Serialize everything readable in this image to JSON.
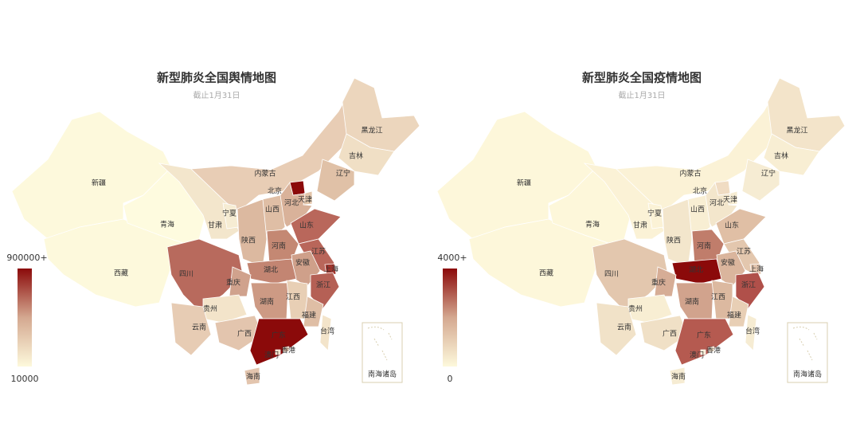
{
  "maps": [
    {
      "title": "新型肺炎全国舆情地图",
      "subtitle": "截止1月31日",
      "legend": {
        "max": "900000+",
        "min": "10000"
      },
      "inset_label": "南海诸岛",
      "regions": [
        {
          "name": "新疆",
          "color": "#fdf9dc"
        },
        {
          "name": "西藏",
          "color": "#fdf9dc"
        },
        {
          "name": "青海",
          "color": "#fefbdf"
        },
        {
          "name": "甘肃",
          "color": "#f3e6cc"
        },
        {
          "name": "内蒙古",
          "color": "#e8cdb5"
        },
        {
          "name": "黑龙江",
          "color": "#ecd6bd"
        },
        {
          "name": "吉林",
          "color": "#f0dfc5"
        },
        {
          "name": "辽宁",
          "color": "#e0c1a7"
        },
        {
          "name": "北京",
          "color": "#8b0a0a"
        },
        {
          "name": "天津",
          "color": "#e3c5aa"
        },
        {
          "name": "河北",
          "color": "#d9b29a"
        },
        {
          "name": "山西",
          "color": "#dfbea5"
        },
        {
          "name": "宁夏",
          "color": "#f6ecd3"
        },
        {
          "name": "陕西",
          "color": "#dcb9a0"
        },
        {
          "name": "山东",
          "color": "#b9675b"
        },
        {
          "name": "河南",
          "color": "#c48873"
        },
        {
          "name": "江苏",
          "color": "#b9665a"
        },
        {
          "name": "安徽",
          "color": "#cfa08a"
        },
        {
          "name": "上海",
          "color": "#a2352d"
        },
        {
          "name": "浙江",
          "color": "#b56055"
        },
        {
          "name": "湖北",
          "color": "#c38572"
        },
        {
          "name": "四川",
          "color": "#b86a5d"
        },
        {
          "name": "重庆",
          "color": "#d0a28d"
        },
        {
          "name": "湖南",
          "color": "#cd9a84"
        },
        {
          "name": "江西",
          "color": "#e8cfb5"
        },
        {
          "name": "福建",
          "color": "#dfbea5"
        },
        {
          "name": "贵州",
          "color": "#f3e4ca"
        },
        {
          "name": "云南",
          "color": "#e7ccb4"
        },
        {
          "name": "广西",
          "color": "#e3c5ae"
        },
        {
          "name": "广东",
          "color": "#8b0a0a"
        },
        {
          "name": "台湾",
          "color": "#f3e4ca"
        },
        {
          "name": "海南",
          "color": "#e3c5ae"
        },
        {
          "name": "香港",
          "color": "#e0c0a8"
        },
        {
          "name": "澳门",
          "color": "#f0dcc3"
        }
      ]
    },
    {
      "title": "新型肺炎全国疫情地图",
      "subtitle": "截止1月31日",
      "legend": {
        "max": "4000+",
        "min": "0"
      },
      "inset_label": "南海诸岛",
      "regions": [
        {
          "name": "新疆",
          "color": "#fdf7da"
        },
        {
          "name": "西藏",
          "color": "#fdf7da"
        },
        {
          "name": "青海",
          "color": "#fdf7da"
        },
        {
          "name": "甘肃",
          "color": "#fbf2d6"
        },
        {
          "name": "内蒙古",
          "color": "#fbf2d6"
        },
        {
          "name": "黑龙江",
          "color": "#f3e4ca"
        },
        {
          "name": "吉林",
          "color": "#f8eed3"
        },
        {
          "name": "辽宁",
          "color": "#f6ecd3"
        },
        {
          "name": "北京",
          "color": "#f0dcc3"
        },
        {
          "name": "天津",
          "color": "#f6ecd3"
        },
        {
          "name": "河北",
          "color": "#f3e6cc"
        },
        {
          "name": "山西",
          "color": "#f8eed3"
        },
        {
          "name": "宁夏",
          "color": "#fbf2d6"
        },
        {
          "name": "陕西",
          "color": "#f3e6cc"
        },
        {
          "name": "山东",
          "color": "#e0bfa5"
        },
        {
          "name": "河南",
          "color": "#c07d6b"
        },
        {
          "name": "江苏",
          "color": "#e3c7ae"
        },
        {
          "name": "安徽",
          "color": "#dab59d"
        },
        {
          "name": "上海",
          "color": "#e3c5ae"
        },
        {
          "name": "浙江",
          "color": "#b0504a"
        },
        {
          "name": "湖北",
          "color": "#8b0a0a"
        },
        {
          "name": "四川",
          "color": "#e3c7ae"
        },
        {
          "name": "重庆",
          "color": "#d6ad96"
        },
        {
          "name": "湖南",
          "color": "#d1a38d"
        },
        {
          "name": "江西",
          "color": "#dcb9a0"
        },
        {
          "name": "福建",
          "color": "#e8cfb5"
        },
        {
          "name": "贵州",
          "color": "#f8eed3"
        },
        {
          "name": "云南",
          "color": "#f1e2c8"
        },
        {
          "name": "广西",
          "color": "#f0e0c6"
        },
        {
          "name": "广东",
          "color": "#b55a50"
        },
        {
          "name": "台湾",
          "color": "#f6ecd3"
        },
        {
          "name": "海南",
          "color": "#f6ecd3"
        },
        {
          "name": "香港",
          "color": "#f0dcc3"
        },
        {
          "name": "澳门",
          "color": "#f6ecd3"
        }
      ]
    }
  ]
}
